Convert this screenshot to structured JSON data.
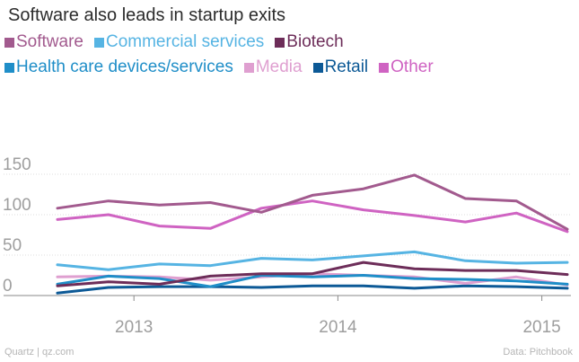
{
  "chart_data": {
    "type": "line",
    "title": "Software also leads in startup exits",
    "xlabel": "",
    "ylabel": "",
    "ylim": [
      0,
      160
    ],
    "yticks": [
      0,
      50,
      100,
      150
    ],
    "xtick_labels": [
      "2013",
      "2014",
      "2015"
    ],
    "x": [
      "2012 Q3",
      "2012 Q4",
      "2013 Q1",
      "2013 Q2",
      "2013 Q3",
      "2013 Q4",
      "2014 Q1",
      "2014 Q2",
      "2014 Q3",
      "2014 Q4",
      "2015 Q1"
    ],
    "series": [
      {
        "name": "Software",
        "color": "#a25a8e",
        "values": [
          108,
          117,
          112,
          115,
          103,
          124,
          132,
          149,
          120,
          117,
          82
        ]
      },
      {
        "name": "Commercial services",
        "color": "#56b4e3",
        "values": [
          38,
          32,
          39,
          37,
          46,
          44,
          49,
          54,
          43,
          40,
          41
        ]
      },
      {
        "name": "Biotech",
        "color": "#6d2d59",
        "values": [
          12,
          17,
          14,
          24,
          27,
          27,
          41,
          33,
          31,
          31,
          26
        ]
      },
      {
        "name": "Health care devices/services",
        "color": "#1f8ec8",
        "values": [
          14,
          24,
          21,
          11,
          25,
          23,
          25,
          21,
          20,
          18,
          14
        ]
      },
      {
        "name": "Media",
        "color": "#df9fd0",
        "values": [
          23,
          24,
          23,
          19,
          23,
          27,
          25,
          23,
          15,
          23,
          13
        ]
      },
      {
        "name": "Retail",
        "color": "#0c5996",
        "values": [
          3,
          10,
          11,
          11,
          10,
          12,
          12,
          9,
          12,
          11,
          9
        ]
      },
      {
        "name": "Other",
        "color": "#cf63c2",
        "values": [
          94,
          100,
          86,
          83,
          108,
          117,
          106,
          99,
          91,
          102,
          79
        ]
      }
    ]
  },
  "footer": {
    "source_left": "Quartz | qz.com",
    "source_right": "Data: Pitchbook"
  }
}
